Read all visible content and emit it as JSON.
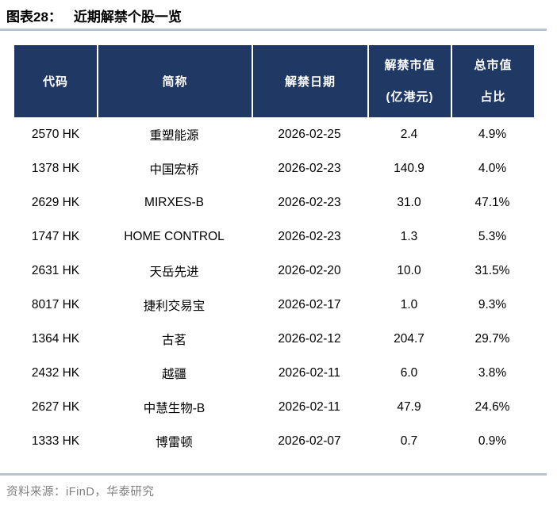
{
  "figure": {
    "label": "图表28：",
    "title": "近期解禁个股一览"
  },
  "table": {
    "header": {
      "code": "代码",
      "name": "简称",
      "date": "解禁日期",
      "value_l1": "解禁市值",
      "value_l2": "(亿港元)",
      "ratio_l1": "总市值",
      "ratio_l2": "占比"
    },
    "rows": [
      {
        "code": "2570 HK",
        "name": "重塑能源",
        "date": "2026-02-25",
        "value": "2.4",
        "ratio": "4.9%"
      },
      {
        "code": "1378 HK",
        "name": "中国宏桥",
        "date": "2026-02-23",
        "value": "140.9",
        "ratio": "4.0%"
      },
      {
        "code": "2629 HK",
        "name": "MIRXES-B",
        "date": "2026-02-23",
        "value": "31.0",
        "ratio": "47.1%"
      },
      {
        "code": "1747 HK",
        "name": "HOME CONTROL",
        "date": "2026-02-23",
        "value": "1.3",
        "ratio": "5.3%"
      },
      {
        "code": "2631 HK",
        "name": "天岳先进",
        "date": "2026-02-20",
        "value": "10.0",
        "ratio": "31.5%"
      },
      {
        "code": "8017 HK",
        "name": "捷利交易宝",
        "date": "2026-02-17",
        "value": "1.0",
        "ratio": "9.3%"
      },
      {
        "code": "1364 HK",
        "name": "古茗",
        "date": "2026-02-12",
        "value": "204.7",
        "ratio": "29.7%"
      },
      {
        "code": "2432 HK",
        "name": "越疆",
        "date": "2026-02-11",
        "value": "6.0",
        "ratio": "3.8%"
      },
      {
        "code": "2627 HK",
        "name": "中慧生物-B",
        "date": "2026-02-11",
        "value": "47.9",
        "ratio": "24.6%"
      },
      {
        "code": "1333 HK",
        "name": "博雷顿",
        "date": "2026-02-07",
        "value": "0.7",
        "ratio": "0.9%"
      }
    ]
  },
  "source": "资料来源：iFinD，华泰研究",
  "colors": {
    "header_bg": "#1F3864",
    "rule": "#B6C4D4",
    "source_text": "#808080"
  }
}
